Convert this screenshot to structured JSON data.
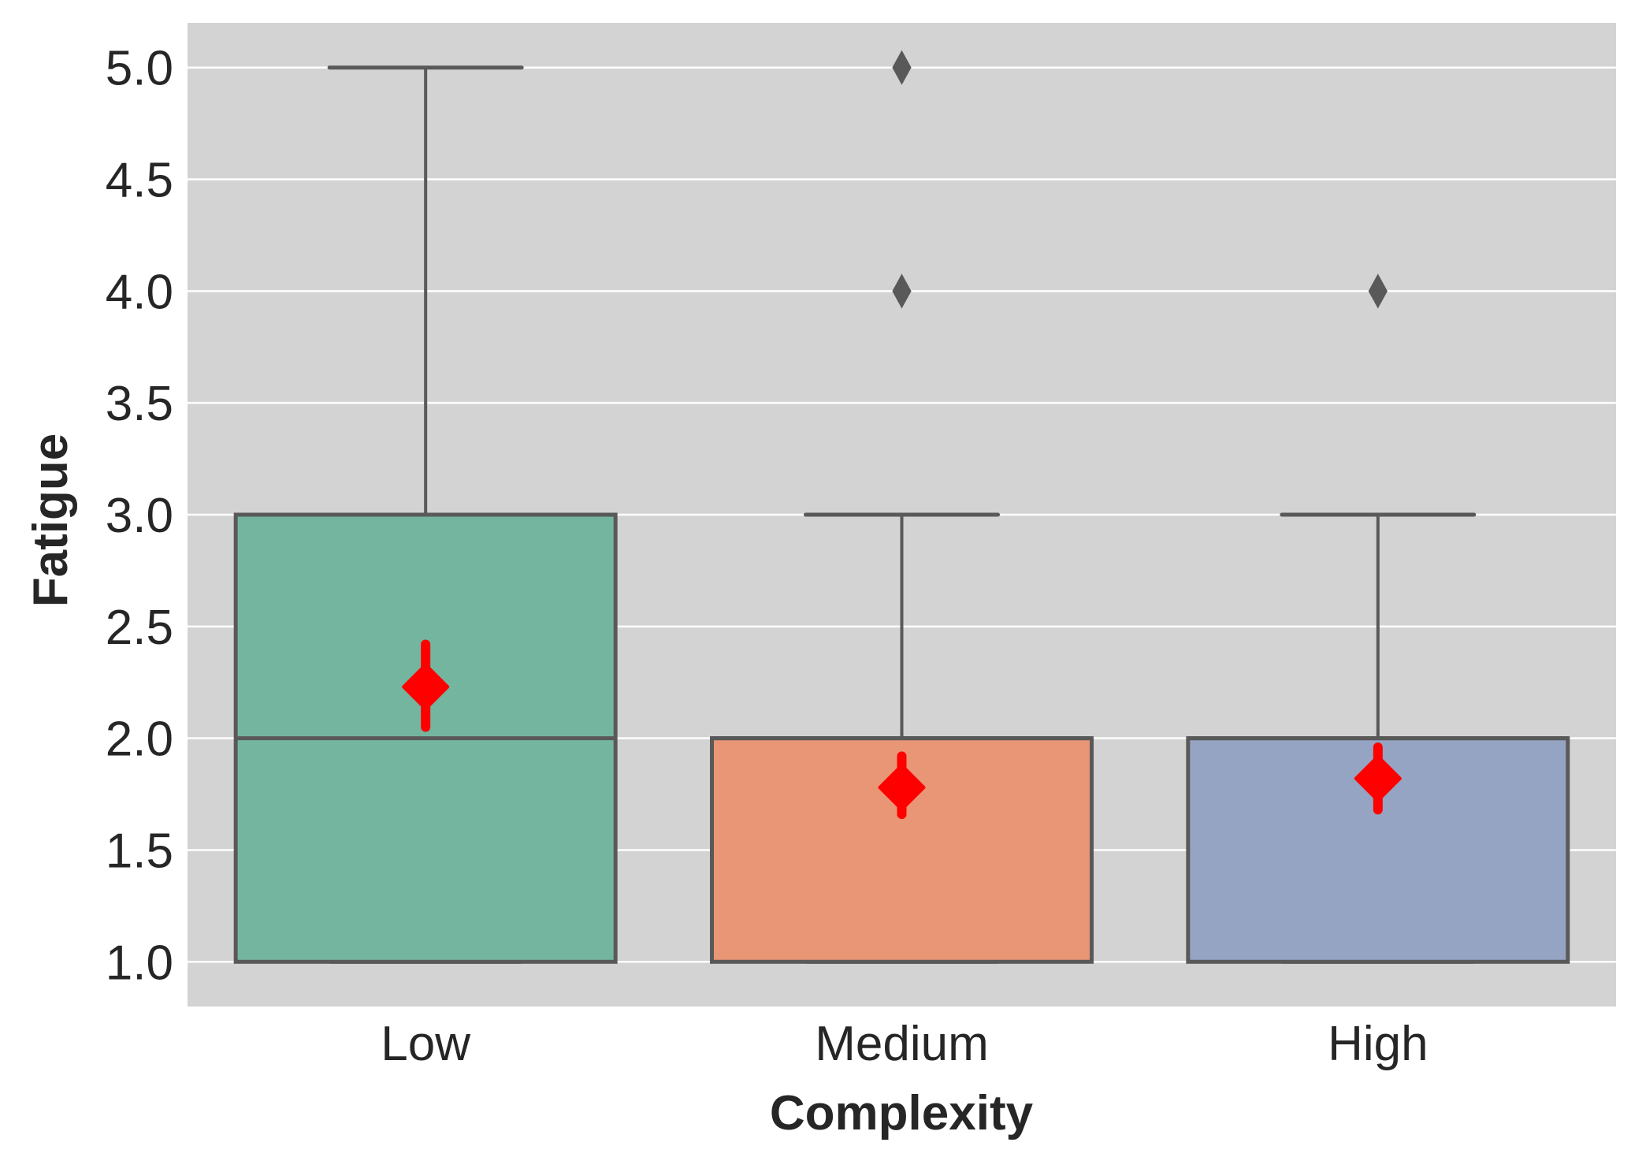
{
  "chart_data": {
    "type": "box",
    "title": "",
    "xlabel": "Complexity",
    "ylabel": "Fatigue",
    "ylim": [
      0.8,
      5.2
    ],
    "yticks": [
      "1.0",
      "1.5",
      "2.0",
      "2.5",
      "3.0",
      "3.5",
      "4.0",
      "4.5",
      "5.0"
    ],
    "grid": "horizontal",
    "background": "#d3d3d3",
    "categories": [
      "Low",
      "Medium",
      "High"
    ],
    "boxes": [
      {
        "category": "Low",
        "whisker_low": 1,
        "q1": 1,
        "median": 2,
        "q3": 3,
        "whisker_high": 5,
        "outliers": [],
        "mean": 2.23,
        "mean_ci": [
          2.05,
          2.42
        ],
        "color": "#74b5a0"
      },
      {
        "category": "Medium",
        "whisker_low": 1,
        "q1": 1,
        "median": 2,
        "q3": 2,
        "whisker_high": 3,
        "outliers": [
          4,
          5
        ],
        "mean": 1.78,
        "mean_ci": [
          1.66,
          1.92
        ],
        "color": "#e89676"
      },
      {
        "category": "High",
        "whisker_low": 1,
        "q1": 1,
        "median": 2,
        "q3": 2,
        "whisker_high": 3,
        "outliers": [
          4
        ],
        "mean": 1.82,
        "mean_ci": [
          1.68,
          1.96
        ],
        "color": "#95a4c2"
      }
    ],
    "mean_marker_color": "#ff0000",
    "line_color": "#595959"
  }
}
